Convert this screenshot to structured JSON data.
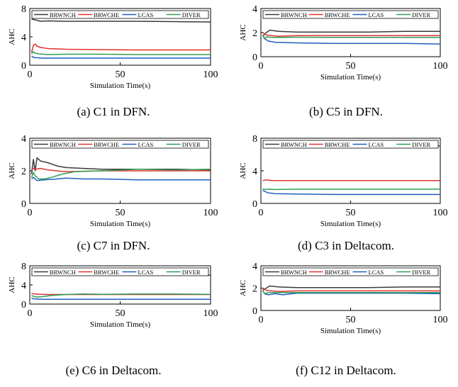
{
  "colors": {
    "BRWNCH": "#3a3a3a",
    "BRWCHE": "#e0322f",
    "LCAS": "#1f5fbf",
    "DIVER": "#2e9e55"
  },
  "chart_data": [
    {
      "type": "line",
      "caption": "(a) C1 in DFN.",
      "xlabel": "Simulation Time(s)",
      "ylabel": "AHC",
      "xlim": [
        0,
        100
      ],
      "ylim": [
        0,
        8
      ],
      "xticks": [
        "0",
        "50",
        "100"
      ],
      "yticks": [
        "0",
        "4",
        "8"
      ],
      "legend": "top",
      "grid": false,
      "series": [
        {
          "name": "BRWNCH",
          "x": [
            1,
            3,
            6,
            10,
            20,
            40,
            60,
            80,
            100
          ],
          "y": [
            6.5,
            6.4,
            6.2,
            6.25,
            6.2,
            6.2,
            6.2,
            6.15,
            6.1
          ]
        },
        {
          "name": "BRWCHE",
          "x": [
            1,
            2,
            3,
            4,
            6,
            10,
            20,
            40,
            60,
            80,
            100
          ],
          "y": [
            1.8,
            2.8,
            3.0,
            2.7,
            2.5,
            2.35,
            2.25,
            2.2,
            2.15,
            2.15,
            2.15
          ]
        },
        {
          "name": "LCAS",
          "x": [
            1,
            2,
            4,
            8,
            20,
            40,
            60,
            80,
            100
          ],
          "y": [
            1.3,
            1.1,
            1.05,
            1.0,
            1.0,
            1.0,
            1.0,
            1.0,
            1.0
          ]
        },
        {
          "name": "DIVER",
          "x": [
            1,
            2,
            3,
            5,
            10,
            20,
            40,
            60,
            80,
            100
          ],
          "y": [
            1.6,
            1.9,
            1.7,
            1.6,
            1.5,
            1.55,
            1.55,
            1.5,
            1.5,
            1.5
          ]
        }
      ]
    },
    {
      "type": "line",
      "caption": "(b) C5 in DFN.",
      "xlabel": "Simulation Time(s)",
      "ylabel": "AHC",
      "xlim": [
        0,
        100
      ],
      "ylim": [
        0,
        4
      ],
      "xticks": [
        "0",
        "50",
        "100"
      ],
      "yticks": [
        "0",
        "2",
        "4"
      ],
      "legend": "top",
      "grid": false,
      "series": [
        {
          "name": "BRWNCH",
          "x": [
            1,
            3,
            5,
            10,
            20,
            40,
            60,
            80,
            100
          ],
          "y": [
            1.7,
            2.0,
            2.2,
            2.1,
            2.05,
            2.05,
            2.05,
            2.1,
            2.1
          ]
        },
        {
          "name": "BRWCHE",
          "x": [
            1,
            3,
            6,
            10,
            20,
            40,
            60,
            80,
            100
          ],
          "y": [
            2.0,
            1.8,
            1.75,
            1.7,
            1.75,
            1.75,
            1.75,
            1.75,
            1.75
          ]
        },
        {
          "name": "LCAS",
          "x": [
            1,
            2,
            4,
            8,
            20,
            40,
            60,
            80,
            100
          ],
          "y": [
            1.8,
            1.5,
            1.3,
            1.2,
            1.15,
            1.1,
            1.1,
            1.1,
            1.05
          ]
        },
        {
          "name": "DIVER",
          "x": [
            1,
            2,
            3,
            6,
            10,
            20,
            40,
            60,
            80,
            100
          ],
          "y": [
            1.8,
            1.5,
            1.65,
            1.6,
            1.6,
            1.62,
            1.6,
            1.6,
            1.6,
            1.6
          ]
        }
      ]
    },
    {
      "type": "line",
      "caption": "(c) C7 in DFN.",
      "xlabel": "Simulation Time(s)",
      "ylabel": "AHC",
      "xlim": [
        0,
        100
      ],
      "ylim": [
        0,
        4
      ],
      "xticks": [
        "0",
        "50",
        "100"
      ],
      "yticks": [
        "0",
        "2",
        "4"
      ],
      "legend": "top",
      "grid": false,
      "series": [
        {
          "name": "BRWNCH",
          "x": [
            1,
            2,
            3,
            4,
            6,
            10,
            15,
            20,
            30,
            40,
            60,
            80,
            100
          ],
          "y": [
            1.8,
            2.7,
            2.0,
            2.8,
            2.6,
            2.5,
            2.3,
            2.2,
            2.15,
            2.1,
            2.1,
            2.1,
            2.05
          ]
        },
        {
          "name": "BRWCHE",
          "x": [
            1,
            3,
            6,
            10,
            20,
            40,
            60,
            80,
            100
          ],
          "y": [
            2.2,
            2.1,
            2.15,
            2.05,
            1.95,
            2.0,
            2.0,
            2.0,
            2.0
          ]
        },
        {
          "name": "LCAS",
          "x": [
            1,
            2,
            4,
            8,
            15,
            20,
            30,
            40,
            60,
            80,
            100
          ],
          "y": [
            1.5,
            1.6,
            1.4,
            1.45,
            1.5,
            1.55,
            1.5,
            1.5,
            1.45,
            1.45,
            1.45
          ]
        },
        {
          "name": "DIVER",
          "x": [
            1,
            2,
            3,
            5,
            8,
            12,
            18,
            25,
            40,
            60,
            80,
            100
          ],
          "y": [
            1.6,
            1.9,
            1.7,
            1.5,
            1.5,
            1.6,
            1.8,
            1.95,
            2.0,
            2.1,
            2.05,
            2.1
          ]
        }
      ]
    },
    {
      "type": "line",
      "caption": "(d) C3 in Deltacom.",
      "xlabel": "Simulation Time(s)",
      "ylabel": "AHC",
      "xlim": [
        0,
        100
      ],
      "ylim": [
        0,
        8
      ],
      "xticks": [
        "0",
        "50",
        "100"
      ],
      "yticks": [
        "0",
        "4",
        "8"
      ],
      "legend": "top",
      "grid": false,
      "series": [
        {
          "name": "BRWNCH",
          "x": [
            1,
            5,
            10,
            20,
            40,
            60,
            80,
            100
          ],
          "y": [
            7.1,
            7.0,
            7.2,
            7.1,
            7.1,
            7.1,
            7.1,
            7.05
          ]
        },
        {
          "name": "BRWCHE",
          "x": [
            1,
            3,
            6,
            10,
            20,
            40,
            60,
            80,
            100
          ],
          "y": [
            2.8,
            2.9,
            2.8,
            2.8,
            2.8,
            2.8,
            2.8,
            2.8,
            2.8
          ]
        },
        {
          "name": "LCAS",
          "x": [
            1,
            2,
            4,
            8,
            20,
            40,
            60,
            80,
            100
          ],
          "y": [
            1.6,
            1.5,
            1.3,
            1.2,
            1.15,
            1.1,
            1.1,
            1.1,
            1.1
          ]
        },
        {
          "name": "DIVER",
          "x": [
            1,
            2,
            4,
            8,
            20,
            40,
            60,
            80,
            100
          ],
          "y": [
            1.8,
            1.7,
            1.75,
            1.7,
            1.75,
            1.75,
            1.75,
            1.75,
            1.75
          ]
        }
      ]
    },
    {
      "type": "line",
      "caption": "(e) C6 in Deltacom.",
      "xlabel": "Simulation Time(s)",
      "ylabel": "AHC",
      "xlim": [
        0,
        100
      ],
      "ylim": [
        0,
        8
      ],
      "xticks": [
        "0",
        "50",
        "100"
      ],
      "yticks": [
        "0",
        "4",
        "8"
      ],
      "legend": "top",
      "grid": false,
      "series": [
        {
          "name": "BRWNCH",
          "x": [
            1,
            2,
            4,
            8,
            20,
            40,
            60,
            80,
            100
          ],
          "y": [
            6.0,
            6.3,
            6.1,
            6.2,
            6.15,
            6.1,
            6.1,
            6.1,
            6.05
          ]
        },
        {
          "name": "BRWCHE",
          "x": [
            1,
            3,
            6,
            10,
            20,
            40,
            60,
            80,
            100
          ],
          "y": [
            2.2,
            2.1,
            2.05,
            2.0,
            2.0,
            2.0,
            2.0,
            2.0,
            2.0
          ]
        },
        {
          "name": "LCAS",
          "x": [
            1,
            2,
            4,
            8,
            20,
            40,
            60,
            80,
            100
          ],
          "y": [
            1.3,
            1.1,
            1.05,
            1.0,
            1.0,
            1.0,
            1.0,
            1.0,
            1.0
          ]
        },
        {
          "name": "DIVER",
          "x": [
            1,
            3,
            5,
            8,
            12,
            20,
            30,
            40,
            60,
            80,
            100
          ],
          "y": [
            1.8,
            1.5,
            1.5,
            1.6,
            1.8,
            2.0,
            2.1,
            2.05,
            2.1,
            2.1,
            2.05
          ]
        }
      ]
    },
    {
      "type": "line",
      "caption": "(f) C12 in Deltacom.",
      "xlabel": "Simulation Time(s)",
      "ylabel": "AHC",
      "xlim": [
        0,
        100
      ],
      "ylim": [
        0,
        4
      ],
      "xticks": [
        "0",
        "50",
        "100"
      ],
      "yticks": [
        "0",
        "2",
        "4"
      ],
      "legend": "top",
      "grid": false,
      "series": [
        {
          "name": "BRWNCH",
          "x": [
            1,
            3,
            5,
            10,
            20,
            40,
            60,
            80,
            100
          ],
          "y": [
            1.8,
            2.0,
            2.2,
            2.1,
            2.05,
            2.05,
            2.05,
            2.1,
            2.1
          ]
        },
        {
          "name": "BRWCHE",
          "x": [
            1,
            3,
            6,
            10,
            20,
            40,
            60,
            80,
            100
          ],
          "y": [
            2.0,
            1.8,
            1.75,
            1.7,
            1.75,
            1.75,
            1.75,
            1.75,
            1.75
          ]
        },
        {
          "name": "LCAS",
          "x": [
            1,
            2,
            4,
            8,
            12,
            20,
            40,
            60,
            80,
            100
          ],
          "y": [
            1.8,
            1.5,
            1.4,
            1.5,
            1.4,
            1.55,
            1.55,
            1.55,
            1.55,
            1.5
          ]
        },
        {
          "name": "DIVER",
          "x": [
            1,
            2,
            4,
            8,
            20,
            40,
            60,
            80,
            100
          ],
          "y": [
            1.8,
            1.5,
            1.6,
            1.6,
            1.6,
            1.6,
            1.6,
            1.6,
            1.6
          ]
        }
      ]
    }
  ]
}
